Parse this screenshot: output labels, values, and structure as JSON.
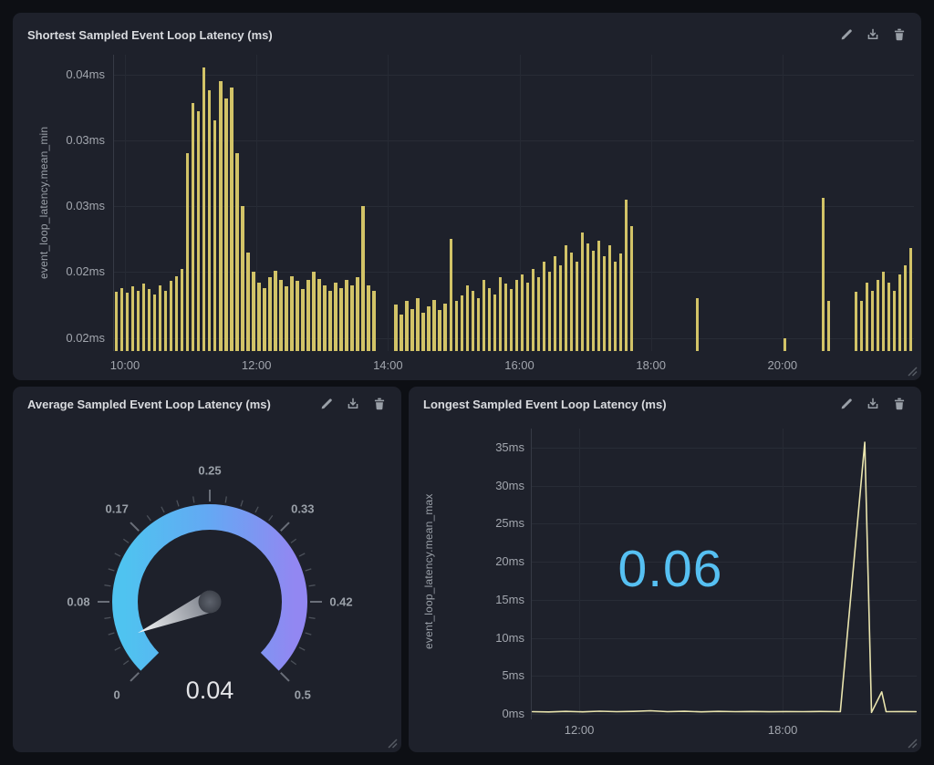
{
  "colors": {
    "page_bg": "#0d0f14",
    "panel_bg": "#1e212b",
    "title_text": "#d9dbdf",
    "icon": "#9aa0a8",
    "tick_text": "#a2a6ae",
    "grid": "#282c36",
    "bar": "#d2c367",
    "line": "#eae5ae",
    "big_number": "#56c0f2",
    "gauge_gradient_start": "#4fc3f0",
    "gauge_gradient_end": "#9287f2"
  },
  "panels": [
    {
      "id": "shortest",
      "title": "Shortest Sampled Event Loop Latency (ms)",
      "actions": [
        {
          "name": "edit",
          "icon": "pencil-icon"
        },
        {
          "name": "download",
          "icon": "download-icon"
        },
        {
          "name": "delete",
          "icon": "trash-icon"
        }
      ],
      "resize_handle": true
    },
    {
      "id": "average",
      "title": "Average Sampled Event Loop Latency (ms)",
      "actions": [
        {
          "name": "edit",
          "icon": "pencil-icon"
        },
        {
          "name": "download",
          "icon": "download-icon"
        },
        {
          "name": "delete",
          "icon": "trash-icon"
        }
      ],
      "resize_handle": true
    },
    {
      "id": "longest",
      "title": "Longest Sampled Event Loop Latency (ms)",
      "actions": [
        {
          "name": "edit",
          "icon": "pencil-icon"
        },
        {
          "name": "download",
          "icon": "download-icon"
        },
        {
          "name": "delete",
          "icon": "trash-icon"
        }
      ],
      "resize_handle": true
    }
  ],
  "chart_data": [
    {
      "panel": "shortest",
      "type": "bar",
      "title": "Shortest Sampled Event Loop Latency (ms)",
      "ylabel": "event_loop_latency.mean_min",
      "unit": "ms",
      "x_start": "09:50",
      "x_step_minutes": 5,
      "ylim": [
        0.019,
        0.0415
      ],
      "y_ticks": [
        {
          "value": 0.02,
          "label": "0.02ms"
        },
        {
          "value": 0.025,
          "label": "0.02ms"
        },
        {
          "value": 0.03,
          "label": "0.03ms"
        },
        {
          "value": 0.035,
          "label": "0.03ms"
        },
        {
          "value": 0.04,
          "label": "0.04ms"
        }
      ],
      "x_ticks": [
        {
          "hour": 10,
          "label": "10:00"
        },
        {
          "hour": 12,
          "label": "12:00"
        },
        {
          "hour": 14,
          "label": "14:00"
        },
        {
          "hour": 16,
          "label": "16:00"
        },
        {
          "hour": 18,
          "label": "18:00"
        },
        {
          "hour": 20,
          "label": "20:00"
        }
      ],
      "bar_color": "#d2c367",
      "values": [
        0.0235,
        0.0238,
        0.0234,
        0.0239,
        0.0236,
        0.0241,
        0.0237,
        0.0233,
        0.024,
        0.0236,
        0.0243,
        0.0247,
        0.0252,
        0.034,
        0.0378,
        0.0372,
        0.0405,
        0.0388,
        0.0365,
        0.0395,
        0.0382,
        0.039,
        0.034,
        0.03,
        0.0265,
        0.025,
        0.0242,
        0.0238,
        0.0246,
        0.0251,
        0.0244,
        0.0239,
        0.0247,
        0.0243,
        0.0237,
        0.0244,
        0.025,
        0.0245,
        0.024,
        0.0236,
        0.0242,
        0.0238,
        0.0244,
        0.024,
        0.0246,
        0.03,
        0.024,
        0.0236,
        null,
        null,
        null,
        0.0225,
        0.0218,
        0.0228,
        0.0222,
        0.023,
        0.0219,
        0.0224,
        0.0229,
        0.0221,
        0.0226,
        0.0275,
        0.0228,
        0.0232,
        0.024,
        0.0236,
        0.023,
        0.0244,
        0.0238,
        0.0233,
        0.0246,
        0.0241,
        0.0237,
        0.0244,
        0.0248,
        0.0242,
        0.0252,
        0.0246,
        0.0258,
        0.025,
        0.0262,
        0.0255,
        0.027,
        0.0265,
        0.0258,
        0.028,
        0.0272,
        0.0266,
        0.0274,
        0.0262,
        0.027,
        0.0258,
        0.0264,
        0.0305,
        0.0285,
        null,
        null,
        null,
        null,
        null,
        null,
        null,
        null,
        null,
        null,
        null,
        0.023,
        null,
        null,
        null,
        null,
        null,
        null,
        null,
        null,
        null,
        null,
        null,
        null,
        null,
        null,
        null,
        0.02,
        null,
        null,
        null,
        null,
        null,
        null,
        0.0306,
        0.0228,
        null,
        null,
        null,
        null,
        0.0235,
        0.0228,
        0.0242,
        0.0236,
        0.0244,
        0.025,
        0.0242,
        0.0236,
        0.0248,
        0.0255,
        0.0268
      ]
    },
    {
      "panel": "average",
      "type": "gauge",
      "title": "Average Sampled Event Loop Latency (ms)",
      "value": 0.04,
      "display_value": "0.04",
      "min": 0,
      "max": 0.5,
      "tick_labels": [
        "0",
        "0.08",
        "0.17",
        "0.25",
        "0.33",
        "0.42",
        "0.5"
      ],
      "band_gradient": [
        "#4fc3f0",
        "#63a9f3",
        "#9287f2"
      ]
    },
    {
      "panel": "longest",
      "type": "line",
      "title": "Longest Sampled Event Loop Latency (ms)",
      "ylabel": "event_loop_latency.mean_max",
      "unit": "ms",
      "big_number": "0.06",
      "big_number_color": "#56c0f2",
      "ylim": [
        0,
        37.5
      ],
      "xlim_hours": [
        10.6,
        21.95
      ],
      "y_ticks": [
        {
          "value": 0,
          "label": "0ms"
        },
        {
          "value": 5,
          "label": "5ms"
        },
        {
          "value": 10,
          "label": "10ms"
        },
        {
          "value": 15,
          "label": "15ms"
        },
        {
          "value": 20,
          "label": "20ms"
        },
        {
          "value": 25,
          "label": "25ms"
        },
        {
          "value": 30,
          "label": "30ms"
        },
        {
          "value": 35,
          "label": "35ms"
        }
      ],
      "x_ticks": [
        {
          "hour": 12,
          "label": "12:00"
        },
        {
          "hour": 18,
          "label": "18:00"
        }
      ],
      "line_color": "#eae5ae",
      "points": [
        [
          10.62,
          0.3
        ],
        [
          11.1,
          0.26
        ],
        [
          11.6,
          0.34
        ],
        [
          12.1,
          0.28
        ],
        [
          12.6,
          0.36
        ],
        [
          13.1,
          0.3
        ],
        [
          13.6,
          0.33
        ],
        [
          14.1,
          0.42
        ],
        [
          14.6,
          0.3
        ],
        [
          15.1,
          0.35
        ],
        [
          15.6,
          0.28
        ],
        [
          16.1,
          0.34
        ],
        [
          16.6,
          0.3
        ],
        [
          17.1,
          0.32
        ],
        [
          17.6,
          0.29
        ],
        [
          18.1,
          0.31
        ],
        [
          18.6,
          0.3
        ],
        [
          19.1,
          0.32
        ],
        [
          19.7,
          0.3
        ],
        [
          20.42,
          35.7
        ],
        [
          20.62,
          0.2
        ],
        [
          20.92,
          2.9
        ],
        [
          21.05,
          0.3
        ],
        [
          21.5,
          0.31
        ],
        [
          21.93,
          0.3
        ]
      ]
    }
  ]
}
